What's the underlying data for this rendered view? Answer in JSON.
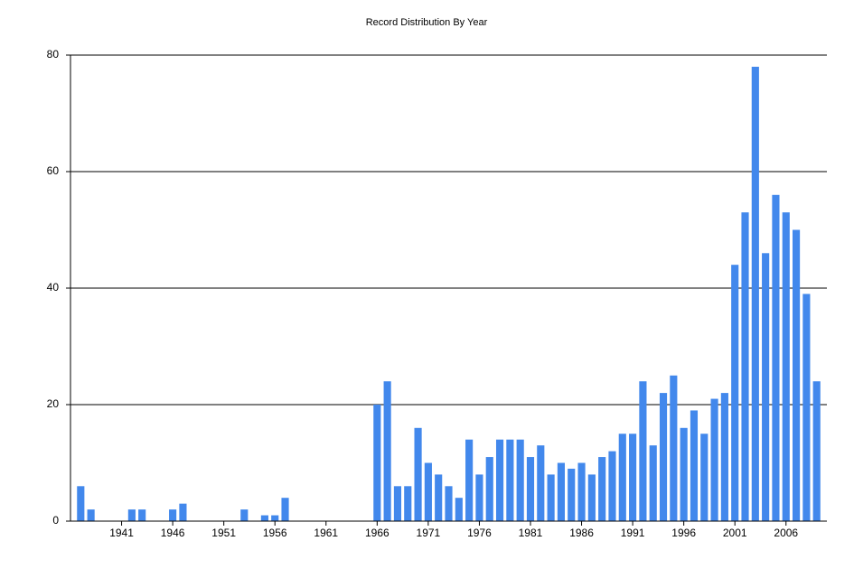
{
  "chart_data": {
    "type": "bar",
    "title": "Record Distribution By Year",
    "x": [
      1937,
      1938,
      1939,
      1940,
      1941,
      1942,
      1943,
      1944,
      1945,
      1946,
      1947,
      1948,
      1949,
      1950,
      1951,
      1952,
      1953,
      1954,
      1955,
      1956,
      1957,
      1958,
      1959,
      1960,
      1961,
      1962,
      1963,
      1964,
      1965,
      1966,
      1967,
      1968,
      1969,
      1970,
      1971,
      1972,
      1973,
      1974,
      1975,
      1976,
      1977,
      1978,
      1979,
      1980,
      1981,
      1982,
      1983,
      1984,
      1985,
      1986,
      1987,
      1988,
      1989,
      1990,
      1991,
      1992,
      1993,
      1994,
      1995,
      1996,
      1997,
      1998,
      1999,
      2000,
      2001,
      2002,
      2003,
      2004,
      2005,
      2006,
      2007,
      2008,
      2009
    ],
    "values": [
      6,
      2,
      0,
      0,
      0,
      2,
      2,
      0,
      0,
      2,
      3,
      0,
      0,
      0,
      0,
      0,
      2,
      0,
      1,
      1,
      4,
      0,
      0,
      0,
      0,
      0,
      0,
      0,
      0,
      20,
      24,
      6,
      6,
      16,
      10,
      8,
      6,
      4,
      14,
      8,
      11,
      14,
      14,
      14,
      11,
      13,
      8,
      10,
      9,
      10,
      8,
      11,
      12,
      15,
      15,
      24,
      13,
      22,
      25,
      16,
      19,
      15,
      21,
      22,
      44,
      53,
      78,
      46,
      56,
      53,
      50,
      39,
      24
    ],
    "color": "#4288ec",
    "xlim": [
      1936,
      2010
    ],
    "xticks": [
      1941,
      1946,
      1951,
      1956,
      1961,
      1966,
      1971,
      1976,
      1981,
      1986,
      1991,
      1996,
      2001,
      2006
    ],
    "ylim": [
      0,
      80
    ],
    "yticks": [
      0,
      20,
      40,
      60,
      80
    ],
    "grid": true
  }
}
